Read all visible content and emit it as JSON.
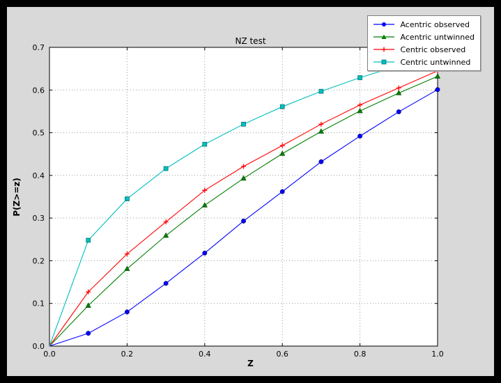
{
  "window": {
    "outer_bg": "#000000",
    "figure_bg": "#d9d9d9",
    "plot_bg": "#ffffff"
  },
  "chart_data": {
    "type": "line",
    "title": "NZ test",
    "xlabel": "Z",
    "ylabel": "P(Z>=z)",
    "xlim": [
      0.0,
      1.0
    ],
    "ylim": [
      0.0,
      0.7
    ],
    "xticks": [
      0.0,
      0.2,
      0.4,
      0.6,
      0.8,
      1.0
    ],
    "yticks": [
      0.0,
      0.1,
      0.2,
      0.3,
      0.4,
      0.5,
      0.6,
      0.7
    ],
    "grid": true,
    "legend_position": "upper right",
    "x": [
      0.0,
      0.1,
      0.2,
      0.3,
      0.4,
      0.5,
      0.6,
      0.7,
      0.8,
      0.9,
      1.0
    ],
    "series": [
      {
        "name": "Acentric observed",
        "color": "#0000ff",
        "marker": "circle",
        "values": [
          0.0,
          0.03,
          0.08,
          0.147,
          0.218,
          0.293,
          0.362,
          0.432,
          0.492,
          0.549,
          0.601
        ]
      },
      {
        "name": "Acentric untwinned",
        "color": "#007f00",
        "marker": "triangle",
        "values": [
          0.0,
          0.095,
          0.181,
          0.259,
          0.33,
          0.393,
          0.451,
          0.503,
          0.551,
          0.593,
          0.632
        ]
      },
      {
        "name": "Centric observed",
        "color": "#ff0000",
        "marker": "plus",
        "values": [
          0.0,
          0.127,
          0.216,
          0.291,
          0.365,
          0.421,
          0.47,
          0.52,
          0.565,
          0.605,
          0.645
        ]
      },
      {
        "name": "Centric untwinned",
        "color": "#00bfbf",
        "marker": "square",
        "values": [
          0.0,
          0.248,
          0.345,
          0.416,
          0.473,
          0.52,
          0.561,
          0.597,
          0.629,
          0.657,
          0.683
        ]
      }
    ]
  }
}
